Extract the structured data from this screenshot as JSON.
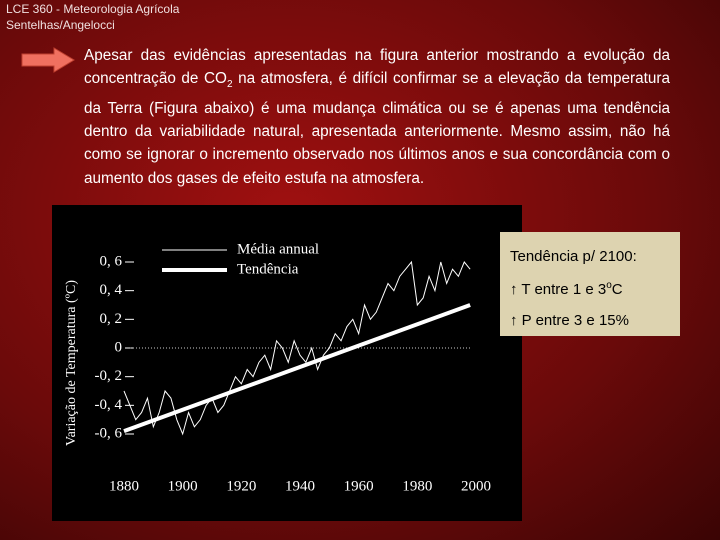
{
  "header": {
    "course": "LCE 360 - Meteorologia Agrícola",
    "authors": "Sentelhas/Angelocci"
  },
  "paragraph": {
    "before": "Apesar das evidências apresentadas na figura anterior mostrando a evolução da concentração de CO",
    "subscript": "2",
    "after": " na atmosfera, é difícil confirmar se a elevação da temperatura da Terra (Figura abaixo) é uma mudança climática ou se é apenas uma tendência dentro da variabilidade natural, apresentada anteriormente. Mesmo assim, não há como se ignorar o incremento observado nos últimos anos e sua concordância com o aumento dos gases de efeito estufa na atmosfera."
  },
  "chart_data": {
    "type": "line",
    "y_label": "Variação de Temperatura (ºC)",
    "xlim": [
      1880,
      2000
    ],
    "xticks": [
      1880,
      1900,
      1920,
      1940,
      1960,
      1980,
      2000
    ],
    "ylim": [
      -0.6,
      0.6
    ],
    "yticks": [
      {
        "value": 0.6,
        "label": "0, 6"
      },
      {
        "value": 0.4,
        "label": "0, 4"
      },
      {
        "value": 0.2,
        "label": "0, 2"
      },
      0,
      {
        "value": -0.2,
        "label": "-0, 2"
      },
      {
        "value": -0.4,
        "label": "-0, 4"
      },
      {
        "value": -0.6,
        "label": "-0, 6"
      }
    ],
    "series": [
      {
        "name": "Média annual",
        "color": "#ffffff",
        "width": 1,
        "x": [
          1880,
          1882,
          1884,
          1886,
          1888,
          1890,
          1892,
          1894,
          1896,
          1898,
          1900,
          1902,
          1904,
          1906,
          1908,
          1910,
          1912,
          1914,
          1916,
          1918,
          1920,
          1922,
          1924,
          1926,
          1928,
          1930,
          1932,
          1934,
          1936,
          1938,
          1940,
          1942,
          1944,
          1946,
          1948,
          1950,
          1952,
          1954,
          1956,
          1958,
          1960,
          1962,
          1964,
          1966,
          1968,
          1970,
          1972,
          1974,
          1976,
          1978,
          1980,
          1982,
          1984,
          1986,
          1988,
          1990,
          1992,
          1994,
          1996,
          1998
        ],
        "values": [
          -0.3,
          -0.4,
          -0.5,
          -0.45,
          -0.35,
          -0.55,
          -0.45,
          -0.3,
          -0.35,
          -0.5,
          -0.6,
          -0.45,
          -0.55,
          -0.5,
          -0.4,
          -0.35,
          -0.45,
          -0.4,
          -0.3,
          -0.2,
          -0.25,
          -0.15,
          -0.2,
          -0.1,
          -0.05,
          -0.15,
          0.05,
          0.0,
          -0.1,
          0.05,
          -0.05,
          -0.1,
          0.0,
          -0.15,
          -0.05,
          0.0,
          0.1,
          0.05,
          0.15,
          0.2,
          0.1,
          0.3,
          0.2,
          0.25,
          0.35,
          0.45,
          0.4,
          0.5,
          0.55,
          0.6,
          0.3,
          0.35,
          0.5,
          0.4,
          0.6,
          0.45,
          0.55,
          0.5,
          0.6,
          0.55
        ]
      },
      {
        "name": "Tendência",
        "color": "#ffffff",
        "width": 4,
        "x": [
          1880,
          1998
        ],
        "values": [
          -0.58,
          0.3
        ]
      }
    ]
  },
  "sidebar": {
    "title": "Tendência p/ 2100:",
    "arrow1": "↑",
    "item1_before": " T entre 1 e 3",
    "item1_sup": "o",
    "item1_after": "C",
    "arrow2": "↑",
    "item2": " P entre 3 e 15%"
  }
}
